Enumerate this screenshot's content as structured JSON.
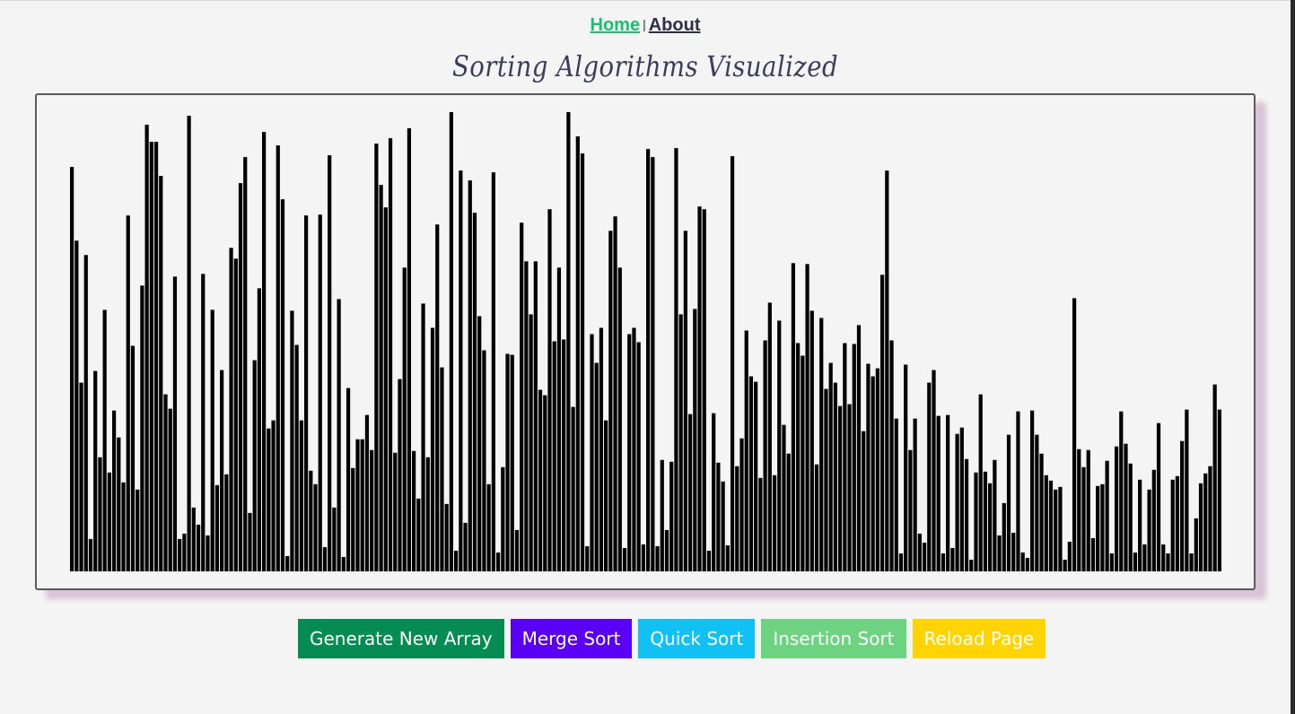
{
  "nav": {
    "home": "Home",
    "separator": "|",
    "about": "About"
  },
  "title": "Sorting Algorithms Visualized",
  "colors": {
    "bar": "#000000",
    "background": "#f4f4f4",
    "home_link": "#16c172",
    "generate": "#048c52",
    "merge": "#5a00f7",
    "quick": "#11c1f3",
    "insertion": "#6dd381",
    "reload": "#ffd400",
    "shadow": "#d8c4d6"
  },
  "array": {
    "max_value": 520,
    "values": [
      450,
      368,
      210,
      352,
      36,
      223,
      127,
      291,
      110,
      179,
      149,
      99,
      396,
      251,
      91,
      318,
      497,
      478,
      478,
      440,
      197,
      181,
      328,
      36,
      42,
      507,
      71,
      52,
      331,
      40,
      291,
      96,
      224,
      108,
      360,
      348,
      432,
      461,
      65,
      235,
      315,
      489,
      159,
      168,
      474,
      414,
      17,
      290,
      252,
      168,
      396,
      112,
      97,
      397,
      27,
      463,
      71,
      303,
      16,
      204,
      115,
      147,
      147,
      174,
      135,
      476,
      430,
      405,
      482,
      132,
      214,
      338,
      493,
      134,
      81,
      298,
      127,
      271,
      386,
      227,
      75,
      511,
      23,
      446,
      54,
      435,
      399,
      284,
      246,
      97,
      444,
      21,
      116,
      242,
      241,
      46,
      388,
      345,
      286,
      345,
      202,
      196,
      403,
      256,
      338,
      258,
      511,
      183,
      484,
      465,
      28,
      264,
      232,
      271,
      168,
      379,
      395,
      338,
      26,
      264,
      271,
      255,
      30,
      470,
      461,
      28,
      124,
      46,
      122,
      471,
      286,
      379,
      175,
      292,
      406,
      403,
      23,
      176,
      121,
      100,
      29,
      462,
      117,
      148,
      268,
      217,
      211,
      104,
      257,
      299,
      107,
      279,
      163,
      131,
      343,
      254,
      240,
      342,
      290,
      119,
      282,
      203,
      232,
      210,
      184,
      254,
      186,
      253,
      274,
      156,
      231,
      217,
      226,
      330,
      446,
      257,
      170,
      20,
      230,
      135,
      170,
      42,
      32,
      210,
      224,
      173,
      20,
      174,
      26,
      153,
      160,
      125,
      13,
      110,
      197,
      111,
      98,
      124,
      40,
      76,
      152,
      43,
      178,
      21,
      15,
      179,
      152,
      131,
      107,
      101,
      91,
      94,
      13,
      33,
      304,
      136,
      116,
      135,
      37,
      95,
      97,
      123,
      20,
      139,
      178,
      142,
      120,
      21,
      102,
      30,
      91,
      113,
      165,
      30,
      20,
      102,
      106,
      145,
      180,
      20,
      59,
      98,
      109,
      117,
      208,
      180
    ]
  },
  "buttons": {
    "generate": "Generate New Array",
    "merge": "Merge Sort",
    "quick": "Quick Sort",
    "insertion": "Insertion Sort",
    "reload": "Reload Page"
  }
}
